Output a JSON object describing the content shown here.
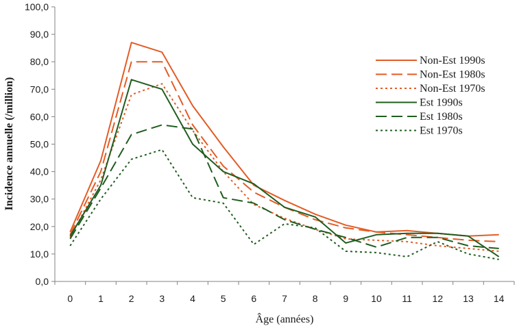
{
  "chart_data": {
    "type": "line",
    "title": "",
    "xlabel": "Âge (années)",
    "ylabel": "Incidence annuelle (/million)",
    "x": [
      0,
      1,
      2,
      3,
      4,
      5,
      6,
      7,
      8,
      9,
      10,
      11,
      12,
      13,
      14
    ],
    "x_tick_labels": [
      "0",
      "1",
      "2",
      "3",
      "4",
      "5",
      "6",
      "7",
      "8",
      "9",
      "10",
      "11",
      "12",
      "13",
      "14"
    ],
    "y_tick_labels": [
      "0,0",
      "10,0",
      "20,0",
      "30,0",
      "40,0",
      "50,0",
      "60,0",
      "70,0",
      "80,0",
      "90,0",
      "100,0"
    ],
    "xlim": [
      -0.5,
      14.5
    ],
    "ylim": [
      0,
      100
    ],
    "grid": false,
    "legend_position": "top-right",
    "series": [
      {
        "name": "Non-Est 1990s",
        "color": "#e35b24",
        "dash": "solid",
        "values": [
          18.0,
          44.0,
          87.0,
          83.5,
          64.0,
          49.0,
          35.0,
          29.5,
          24.5,
          20.5,
          18.0,
          18.5,
          17.5,
          16.5,
          17.0
        ]
      },
      {
        "name": "Non-Est 1980s",
        "color": "#e35b24",
        "dash": "long",
        "values": [
          17.0,
          40.0,
          80.0,
          80.0,
          57.0,
          42.0,
          32.5,
          27.0,
          22.5,
          19.5,
          18.0,
          17.0,
          16.0,
          15.0,
          14.5
        ]
      },
      {
        "name": "Non-Est 1970s",
        "color": "#e35b24",
        "dash": "dot",
        "values": [
          16.0,
          37.0,
          68.0,
          72.0,
          55.0,
          40.0,
          28.0,
          23.0,
          19.0,
          15.5,
          15.0,
          14.5,
          13.0,
          12.0,
          11.0
        ]
      },
      {
        "name": "Est 1990s",
        "color": "#1f5c1f",
        "dash": "solid",
        "values": [
          16.5,
          35.0,
          73.5,
          70.0,
          50.0,
          40.0,
          35.5,
          27.0,
          23.5,
          14.0,
          17.0,
          17.5,
          17.5,
          16.5,
          9.0
        ]
      },
      {
        "name": "Est 1980s",
        "color": "#1f5c1f",
        "dash": "long",
        "values": [
          15.5,
          34.0,
          53.5,
          57.0,
          55.5,
          30.5,
          28.5,
          22.5,
          19.0,
          16.0,
          12.5,
          16.0,
          16.0,
          13.0,
          12.0
        ]
      },
      {
        "name": "Est 1970s",
        "color": "#1f5c1f",
        "dash": "dot",
        "values": [
          13.0,
          30.0,
          44.5,
          48.0,
          30.5,
          28.5,
          13.5,
          21.0,
          19.5,
          11.0,
          10.5,
          9.0,
          14.5,
          10.0,
          8.0
        ]
      }
    ]
  }
}
